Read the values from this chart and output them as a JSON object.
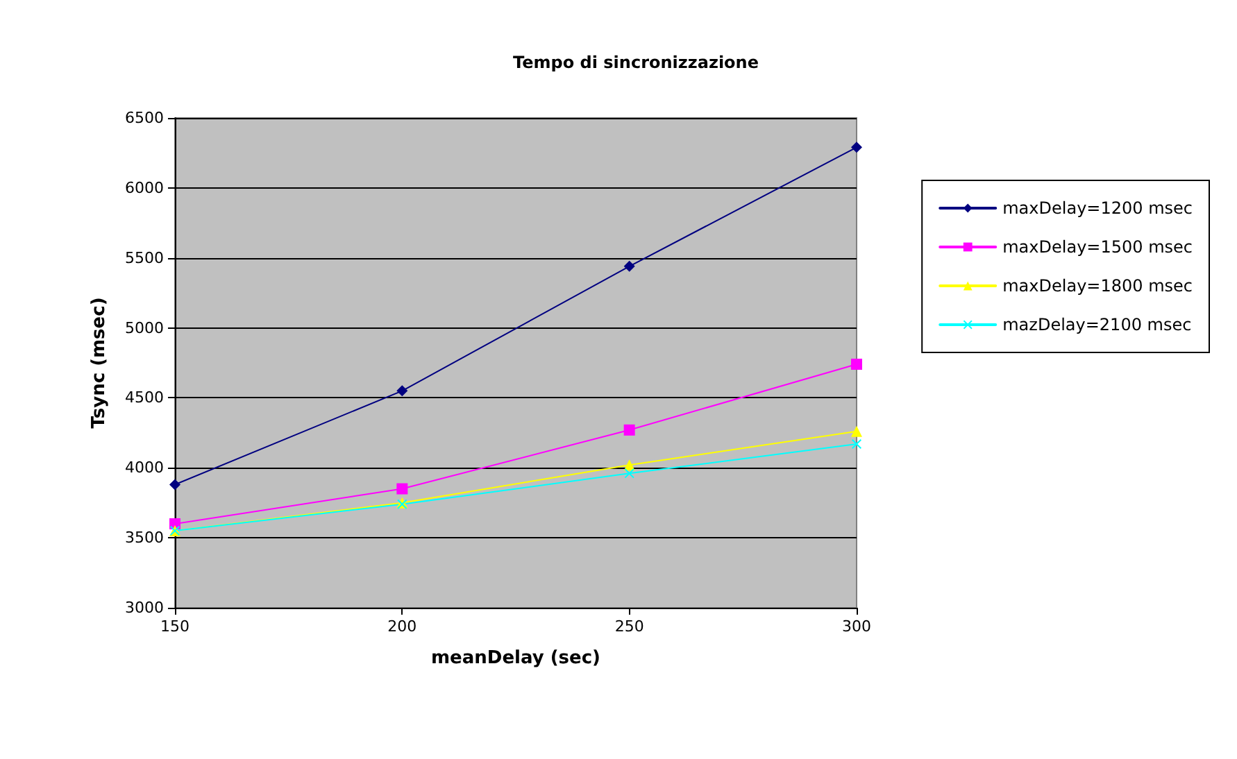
{
  "chart_data": {
    "type": "line",
    "title": "Tempo di sincronizzazione",
    "xlabel": "meanDelay (sec)",
    "ylabel": "Tsync (msec)",
    "x": [
      150,
      200,
      250,
      300
    ],
    "xlim": [
      150,
      300
    ],
    "xticks": [
      150,
      200,
      250,
      300
    ],
    "ylim": [
      3000,
      6500
    ],
    "yticks": [
      3000,
      3500,
      4000,
      4500,
      5000,
      5500,
      6000,
      6500
    ],
    "grid": "y",
    "legend": "right",
    "line_style": "solid",
    "series": [
      {
        "name": "maxDelay=1200 msec",
        "color": "#000080",
        "marker": "diamond",
        "values": [
          3880,
          4550,
          5440,
          6290
        ]
      },
      {
        "name": "maxDelay=1500 msec",
        "color": "#ff00ff",
        "marker": "square",
        "values": [
          3600,
          3850,
          4270,
          4740
        ]
      },
      {
        "name": "maxDelay=1800 msec",
        "color": "#ffff00",
        "marker": "triangle",
        "values": [
          3550,
          3750,
          4020,
          4260
        ]
      },
      {
        "name": "mazDelay=2100 msec",
        "color": "#00ffff",
        "marker": "cross",
        "values": [
          3550,
          3740,
          3960,
          4170
        ]
      }
    ]
  }
}
